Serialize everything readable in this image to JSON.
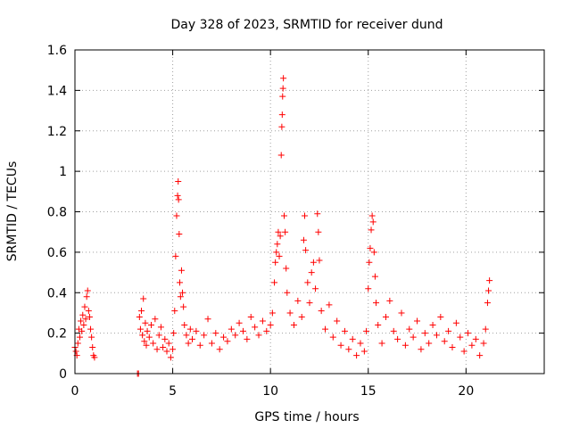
{
  "chart_data": {
    "type": "scatter",
    "title": "Day 328 of 2023, SRMTID for receiver dund",
    "xlabel": "GPS time / hours",
    "ylabel": "SRMTID / TECUs",
    "xlim": [
      0,
      24
    ],
    "ylim": [
      0,
      1.6
    ],
    "xticks": [
      0,
      5,
      10,
      15,
      20
    ],
    "xtick_labels": [
      "0",
      "5",
      "10",
      "15",
      "20"
    ],
    "yticks": [
      0,
      0.2,
      0.4,
      0.6,
      0.8,
      1,
      1.2,
      1.4,
      1.6
    ],
    "ytick_labels": [
      "0",
      "0.2",
      "0.4",
      "0.6",
      "0.8",
      "1",
      "1.2",
      "1.4",
      "1.6"
    ],
    "grid": true,
    "marker": "+",
    "color": "#ff0000",
    "series": [
      {
        "name": "SRMTID",
        "points": [
          [
            0.0,
            0.13
          ],
          [
            0.05,
            0.11
          ],
          [
            0.1,
            0.09
          ],
          [
            0.15,
            0.15
          ],
          [
            0.2,
            0.22
          ],
          [
            0.25,
            0.18
          ],
          [
            0.3,
            0.26
          ],
          [
            0.35,
            0.21
          ],
          [
            0.4,
            0.29
          ],
          [
            0.45,
            0.24
          ],
          [
            0.5,
            0.33
          ],
          [
            0.55,
            0.27
          ],
          [
            0.6,
            0.38
          ],
          [
            0.65,
            0.41
          ],
          [
            0.7,
            0.31
          ],
          [
            0.75,
            0.28
          ],
          [
            0.8,
            0.22
          ],
          [
            0.85,
            0.18
          ],
          [
            0.9,
            0.13
          ],
          [
            0.95,
            0.09
          ],
          [
            1.0,
            0.08
          ],
          [
            3.2,
            0.0
          ],
          [
            3.25,
            0.0
          ],
          [
            3.3,
            0.28
          ],
          [
            3.35,
            0.22
          ],
          [
            3.4,
            0.31
          ],
          [
            3.45,
            0.19
          ],
          [
            3.5,
            0.37
          ],
          [
            3.55,
            0.16
          ],
          [
            3.6,
            0.25
          ],
          [
            3.65,
            0.14
          ],
          [
            3.7,
            0.21
          ],
          [
            3.8,
            0.18
          ],
          [
            3.9,
            0.24
          ],
          [
            4.0,
            0.15
          ],
          [
            4.1,
            0.27
          ],
          [
            4.2,
            0.12
          ],
          [
            4.3,
            0.19
          ],
          [
            4.4,
            0.23
          ],
          [
            4.5,
            0.13
          ],
          [
            4.6,
            0.17
          ],
          [
            4.7,
            0.11
          ],
          [
            4.8,
            0.15
          ],
          [
            4.9,
            0.08
          ],
          [
            5.0,
            0.12
          ],
          [
            5.05,
            0.2
          ],
          [
            5.1,
            0.31
          ],
          [
            5.15,
            0.58
          ],
          [
            5.2,
            0.78
          ],
          [
            5.25,
            0.88
          ],
          [
            5.28,
            0.95
          ],
          [
            5.3,
            0.86
          ],
          [
            5.33,
            0.69
          ],
          [
            5.36,
            0.45
          ],
          [
            5.4,
            0.38
          ],
          [
            5.45,
            0.51
          ],
          [
            5.5,
            0.4
          ],
          [
            5.55,
            0.33
          ],
          [
            5.6,
            0.24
          ],
          [
            5.7,
            0.19
          ],
          [
            5.8,
            0.15
          ],
          [
            5.9,
            0.22
          ],
          [
            6.0,
            0.17
          ],
          [
            6.2,
            0.21
          ],
          [
            6.4,
            0.14
          ],
          [
            6.6,
            0.19
          ],
          [
            6.8,
            0.27
          ],
          [
            7.0,
            0.15
          ],
          [
            7.2,
            0.2
          ],
          [
            7.4,
            0.12
          ],
          [
            7.6,
            0.18
          ],
          [
            7.8,
            0.16
          ],
          [
            8.0,
            0.22
          ],
          [
            8.2,
            0.19
          ],
          [
            8.4,
            0.25
          ],
          [
            8.6,
            0.21
          ],
          [
            8.8,
            0.17
          ],
          [
            9.0,
            0.28
          ],
          [
            9.2,
            0.23
          ],
          [
            9.4,
            0.19
          ],
          [
            9.6,
            0.26
          ],
          [
            9.8,
            0.21
          ],
          [
            10.0,
            0.24
          ],
          [
            10.1,
            0.3
          ],
          [
            10.2,
            0.45
          ],
          [
            10.25,
            0.55
          ],
          [
            10.3,
            0.6
          ],
          [
            10.35,
            0.64
          ],
          [
            10.4,
            0.7
          ],
          [
            10.45,
            0.58
          ],
          [
            10.5,
            0.68
          ],
          [
            10.55,
            1.08
          ],
          [
            10.58,
            1.22
          ],
          [
            10.6,
            1.28
          ],
          [
            10.62,
            1.37
          ],
          [
            10.64,
            1.41
          ],
          [
            10.66,
            1.46
          ],
          [
            10.7,
            0.78
          ],
          [
            10.75,
            0.7
          ],
          [
            10.8,
            0.52
          ],
          [
            10.85,
            0.4
          ],
          [
            11.0,
            0.3
          ],
          [
            11.2,
            0.24
          ],
          [
            11.4,
            0.36
          ],
          [
            11.6,
            0.28
          ],
          [
            11.7,
            0.66
          ],
          [
            11.75,
            0.78
          ],
          [
            11.8,
            0.61
          ],
          [
            11.9,
            0.45
          ],
          [
            12.0,
            0.35
          ],
          [
            12.1,
            0.5
          ],
          [
            12.2,
            0.55
          ],
          [
            12.3,
            0.42
          ],
          [
            12.4,
            0.79
          ],
          [
            12.45,
            0.7
          ],
          [
            12.5,
            0.56
          ],
          [
            12.6,
            0.31
          ],
          [
            12.8,
            0.22
          ],
          [
            13.0,
            0.34
          ],
          [
            13.2,
            0.18
          ],
          [
            13.4,
            0.26
          ],
          [
            13.6,
            0.14
          ],
          [
            13.8,
            0.21
          ],
          [
            14.0,
            0.12
          ],
          [
            14.2,
            0.17
          ],
          [
            14.4,
            0.09
          ],
          [
            14.6,
            0.15
          ],
          [
            14.8,
            0.11
          ],
          [
            14.9,
            0.21
          ],
          [
            15.0,
            0.42
          ],
          [
            15.05,
            0.55
          ],
          [
            15.1,
            0.62
          ],
          [
            15.15,
            0.71
          ],
          [
            15.2,
            0.78
          ],
          [
            15.25,
            0.75
          ],
          [
            15.3,
            0.6
          ],
          [
            15.35,
            0.48
          ],
          [
            15.4,
            0.35
          ],
          [
            15.5,
            0.24
          ],
          [
            15.7,
            0.15
          ],
          [
            15.9,
            0.28
          ],
          [
            16.1,
            0.36
          ],
          [
            16.3,
            0.21
          ],
          [
            16.5,
            0.17
          ],
          [
            16.7,
            0.3
          ],
          [
            16.9,
            0.14
          ],
          [
            17.1,
            0.22
          ],
          [
            17.3,
            0.18
          ],
          [
            17.5,
            0.26
          ],
          [
            17.7,
            0.12
          ],
          [
            17.9,
            0.2
          ],
          [
            18.1,
            0.15
          ],
          [
            18.3,
            0.24
          ],
          [
            18.5,
            0.19
          ],
          [
            18.7,
            0.28
          ],
          [
            18.9,
            0.16
          ],
          [
            19.1,
            0.21
          ],
          [
            19.3,
            0.13
          ],
          [
            19.5,
            0.25
          ],
          [
            19.7,
            0.18
          ],
          [
            19.9,
            0.11
          ],
          [
            20.1,
            0.2
          ],
          [
            20.3,
            0.14
          ],
          [
            20.5,
            0.17
          ],
          [
            20.7,
            0.09
          ],
          [
            20.9,
            0.15
          ],
          [
            21.0,
            0.22
          ],
          [
            21.1,
            0.35
          ],
          [
            21.15,
            0.41
          ],
          [
            21.2,
            0.46
          ]
        ]
      }
    ]
  }
}
